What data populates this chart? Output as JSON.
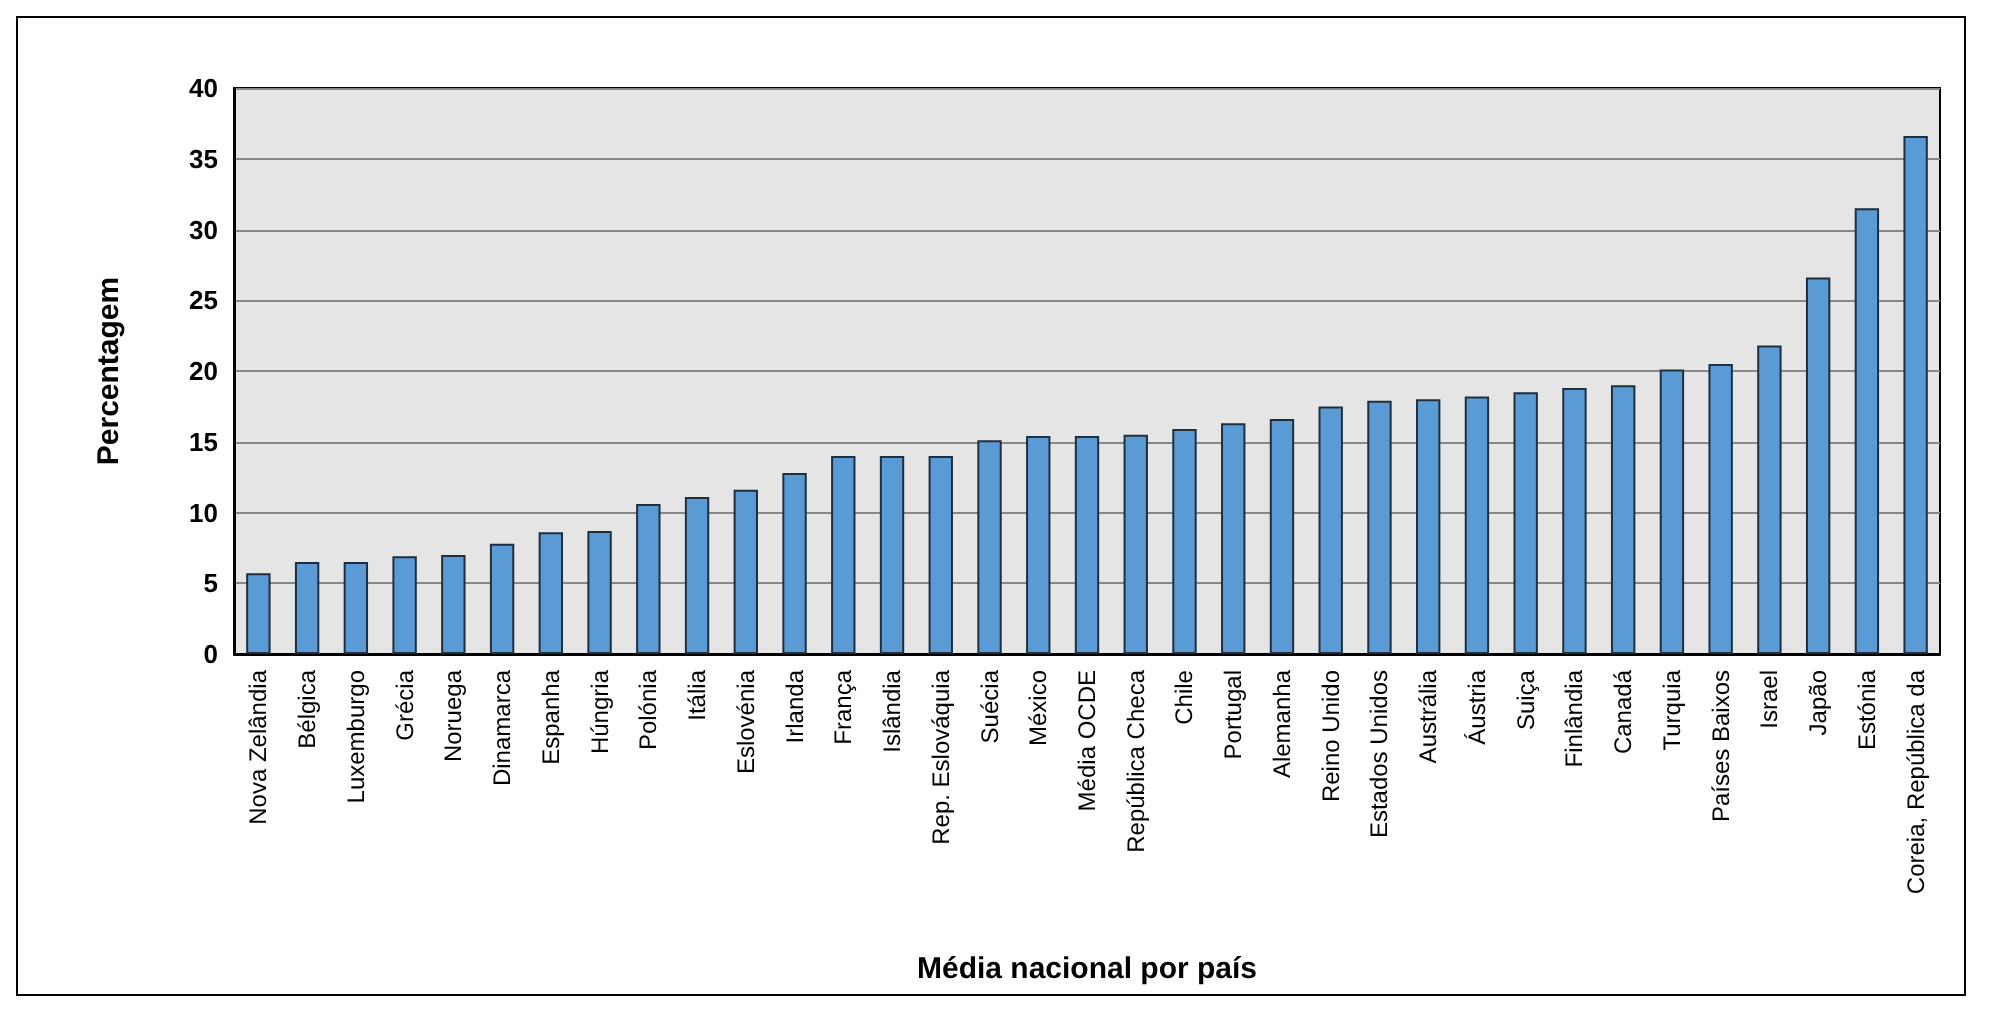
{
  "chart_data": {
    "type": "bar",
    "xlabel": "Média nacional por país",
    "ylabel": "Percentagem",
    "categories": [
      "Nova Zelândia",
      "Bélgica",
      "Luxemburgo",
      "Grécia",
      "Noruega",
      "Dinamarca",
      "Espanha",
      "Húngria",
      "Polónia",
      "Itália",
      "Eslovénia",
      "Irlanda",
      "França",
      "Islândia",
      "Rep. Eslováquia",
      "Suécia",
      "México",
      "Média OCDE",
      "República Checa",
      "Chile",
      "Portugal",
      "Alemanha",
      "Reino Unido",
      "Estados Unidos",
      "Austrália",
      "Áustria",
      "Suiça",
      "Finlândia",
      "Canadá",
      "Turquia",
      "Países Baixos",
      "Israel",
      "Japão",
      "Estónia",
      "Coreia, República da"
    ],
    "values": [
      5.7,
      6.5,
      6.5,
      6.9,
      7.0,
      7.8,
      8.6,
      8.7,
      10.6,
      11.1,
      11.6,
      12.8,
      14.0,
      14.0,
      14.0,
      15.1,
      15.4,
      15.4,
      15.5,
      15.9,
      16.3,
      16.6,
      17.5,
      17.9,
      18.0,
      18.2,
      18.5,
      18.8,
      19.0,
      20.1,
      20.5,
      21.8,
      26.6,
      31.5,
      36.6
    ],
    "color": "#5b9bd5",
    "ylim": [
      0,
      40
    ],
    "yticks": [
      0,
      5,
      10,
      15,
      20,
      25,
      30,
      35,
      40
    ],
    "grid": "y"
  }
}
